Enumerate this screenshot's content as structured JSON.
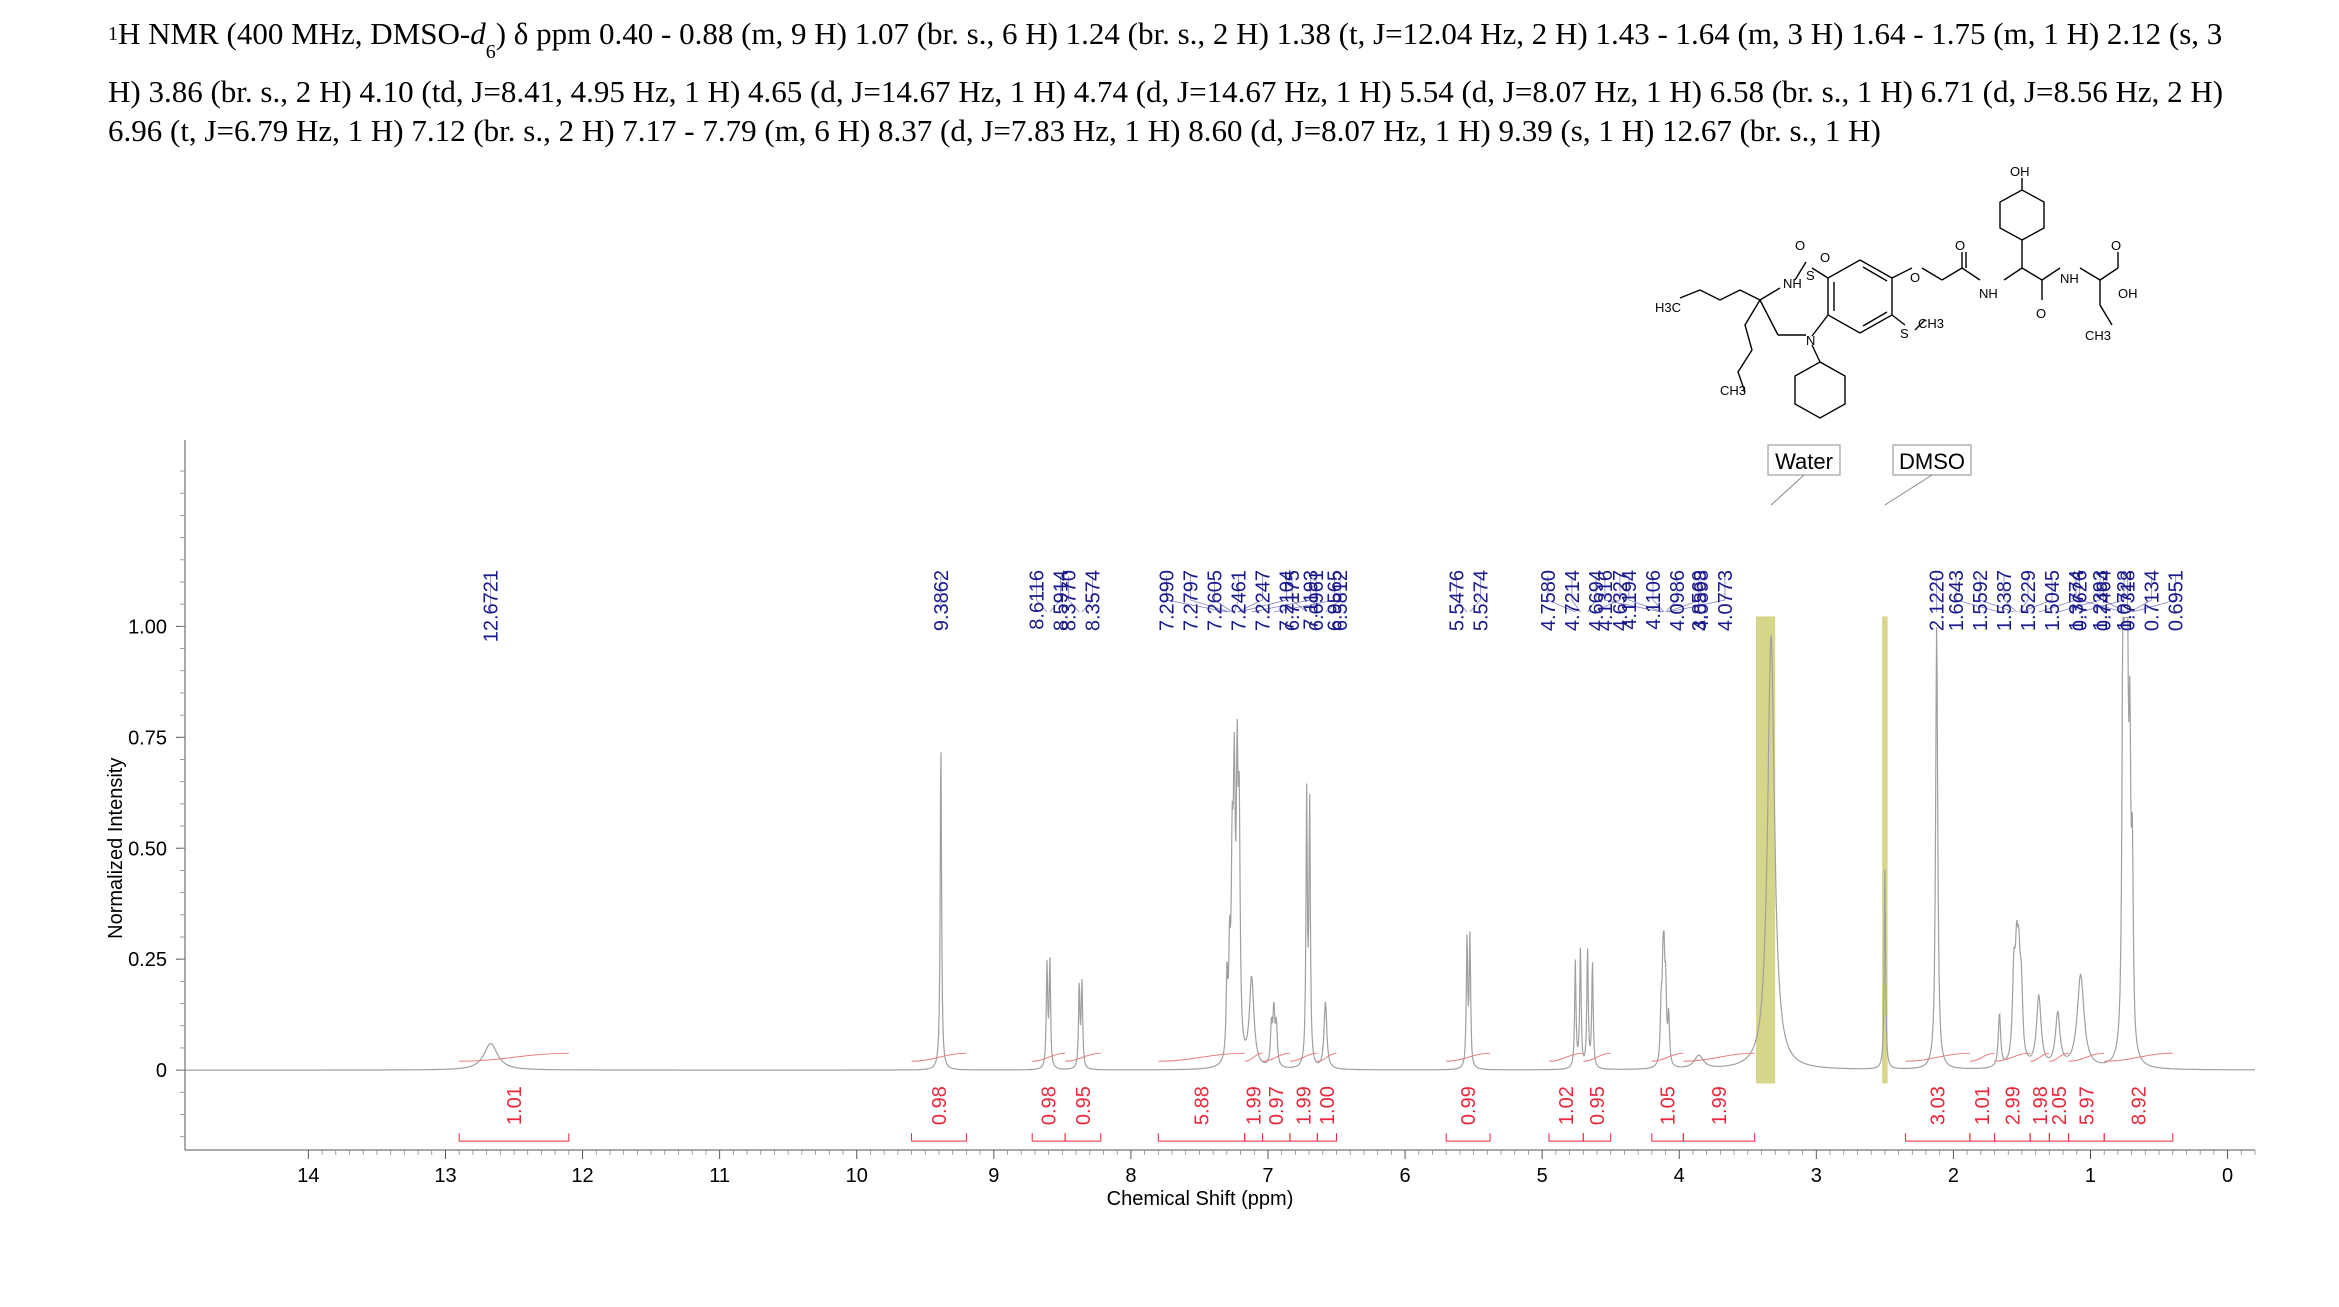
{
  "description": {
    "nucleus": "1",
    "prefix": "H NMR (400 MHz, DMSO-",
    "d_letter": "d",
    "d_sub": "6",
    "close_paren": ")",
    "body": " δ ppm 0.40 - 0.88 (m, 9 H) 1.07 (br. s., 6 H) 1.24 (br. s., 2 H) 1.38 (t,  J=12.04 Hz, 2 H) 1.43 - 1.64 (m, 3 H) 1.64 - 1.75 (m, 1 H) 2.12 (s, 3 H) 3.86 (br. s., 2 H) 4.10 (td,  J=8.41, 4.95 Hz, 1 H) 4.65 (d,  J=14.67 Hz, 1 H) 4.74 (d,  J=14.67 Hz, 1 H) 5.54 (d,  J=8.07 Hz, 1 H) 6.58 (br. s., 1 H) 6.71 (d,  J=8.56 Hz, 2 H) 6.96 (t,  J=6.79 Hz, 1 H) 7.12 (br. s., 2 H) 7.17 - 7.79 (m, 6 H) 8.37 (d,  J=7.83 Hz, 1 H) 8.60 (d,  J=8.07 Hz, 1 H) 9.39 (s, 1 H) 12.67 (br. s., 1 H)"
  },
  "structure": {
    "labels": [
      "OH",
      "O",
      "O",
      "NH",
      "S",
      "O",
      "O",
      "NH",
      "NH",
      "O",
      "OH",
      "H3C",
      "CH3",
      "S",
      "N",
      "O",
      "CH3",
      "CH3"
    ]
  },
  "colors": {
    "spectrum": "#a0a0a0",
    "peak_labels": "#1a1a8c",
    "integrals": "#e8283c",
    "integral_curve": "#e88080",
    "solvent_band": "#c8c864",
    "axis": "#555555"
  },
  "chart_data": {
    "type": "line",
    "xlabel": "Chemical Shift (ppm)",
    "ylabel": "Normalized Intensity",
    "xlim": [
      14.9,
      -0.2
    ],
    "ylim": [
      -0.18,
      1.42
    ],
    "x_reversed": true,
    "x_ticks": [
      14,
      13,
      12,
      11,
      10,
      9,
      8,
      7,
      6,
      5,
      4,
      3,
      2,
      1,
      0
    ],
    "y_ticks": [
      0,
      0.25,
      0.5,
      0.75,
      1.0
    ],
    "y_tick_labels": [
      "0",
      "0.25",
      "0.50",
      "0.75",
      "1.00"
    ],
    "peaks": [
      {
        "x": 12.67,
        "h": 0.06,
        "w": 0.06
      },
      {
        "x": 9.386,
        "h": 0.74,
        "w": 0.006
      },
      {
        "x": 8.612,
        "h": 0.23,
        "w": 0.006
      },
      {
        "x": 8.591,
        "h": 0.24,
        "w": 0.006
      },
      {
        "x": 8.377,
        "h": 0.19,
        "w": 0.006
      },
      {
        "x": 8.357,
        "h": 0.19,
        "w": 0.006
      },
      {
        "x": 7.299,
        "h": 0.18,
        "w": 0.007
      },
      {
        "x": 7.28,
        "h": 0.22,
        "w": 0.007
      },
      {
        "x": 7.261,
        "h": 0.4,
        "w": 0.008
      },
      {
        "x": 7.246,
        "h": 0.56,
        "w": 0.008
      },
      {
        "x": 7.225,
        "h": 0.58,
        "w": 0.008
      },
      {
        "x": 7.21,
        "h": 0.5,
        "w": 0.008
      },
      {
        "x": 7.119,
        "h": 0.2,
        "w": 0.02
      },
      {
        "x": 6.957,
        "h": 0.12,
        "w": 0.008
      },
      {
        "x": 6.975,
        "h": 0.09,
        "w": 0.008
      },
      {
        "x": 6.939,
        "h": 0.09,
        "w": 0.008
      },
      {
        "x": 6.718,
        "h": 0.61,
        "w": 0.006
      },
      {
        "x": 6.696,
        "h": 0.58,
        "w": 0.006
      },
      {
        "x": 6.581,
        "h": 0.15,
        "w": 0.012
      },
      {
        "x": 5.548,
        "h": 0.29,
        "w": 0.006
      },
      {
        "x": 5.527,
        "h": 0.29,
        "w": 0.006
      },
      {
        "x": 4.758,
        "h": 0.24,
        "w": 0.006
      },
      {
        "x": 4.721,
        "h": 0.27,
        "w": 0.006
      },
      {
        "x": 4.669,
        "h": 0.27,
        "w": 0.006
      },
      {
        "x": 4.633,
        "h": 0.24,
        "w": 0.006
      },
      {
        "x": 4.132,
        "h": 0.12,
        "w": 0.007
      },
      {
        "x": 4.119,
        "h": 0.17,
        "w": 0.007
      },
      {
        "x": 4.111,
        "h": 0.18,
        "w": 0.007
      },
      {
        "x": 4.099,
        "h": 0.16,
        "w": 0.007
      },
      {
        "x": 4.077,
        "h": 0.11,
        "w": 0.007
      },
      {
        "x": 3.857,
        "h": 0.03,
        "w": 0.04
      },
      {
        "x": 3.33,
        "h": 0.98,
        "w": 0.03
      },
      {
        "x": 2.5,
        "h": 0.45,
        "w": 0.006
      },
      {
        "x": 2.122,
        "h": 1.0,
        "w": 0.009
      },
      {
        "x": 1.664,
        "h": 0.12,
        "w": 0.01
      },
      {
        "x": 1.559,
        "h": 0.19,
        "w": 0.012
      },
      {
        "x": 1.539,
        "h": 0.2,
        "w": 0.012
      },
      {
        "x": 1.523,
        "h": 0.18,
        "w": 0.012
      },
      {
        "x": 1.505,
        "h": 0.15,
        "w": 0.012
      },
      {
        "x": 1.377,
        "h": 0.16,
        "w": 0.02
      },
      {
        "x": 1.239,
        "h": 0.12,
        "w": 0.02
      },
      {
        "x": 1.072,
        "h": 0.21,
        "w": 0.03
      },
      {
        "x": 0.763,
        "h": 0.88,
        "w": 0.008
      },
      {
        "x": 0.746,
        "h": 0.97,
        "w": 0.008
      },
      {
        "x": 0.732,
        "h": 0.95,
        "w": 0.008
      },
      {
        "x": 0.713,
        "h": 0.6,
        "w": 0.008
      },
      {
        "x": 0.695,
        "h": 0.4,
        "w": 0.008
      }
    ],
    "peak_labels": [
      {
        "label": "12.6721",
        "x": 12.6721
      },
      {
        "label": "9.3862",
        "x": 9.3862
      },
      {
        "label": "8.6116",
        "x": 8.6116
      },
      {
        "label": "8.5914",
        "x": 8.5914
      },
      {
        "label": "8.3770",
        "x": 8.377
      },
      {
        "label": "8.3574",
        "x": 8.3574
      },
      {
        "label": "7.2990",
        "x": 7.299
      },
      {
        "label": "7.2797",
        "x": 7.2797
      },
      {
        "label": "7.2605",
        "x": 7.2605
      },
      {
        "label": "7.2461",
        "x": 7.2461
      },
      {
        "label": "7.2247",
        "x": 7.2247
      },
      {
        "label": "7.2104",
        "x": 7.2104
      },
      {
        "label": "7.1193",
        "x": 7.1193
      },
      {
        "label": "6.9565",
        "x": 6.9565
      },
      {
        "label": "6.7175",
        "x": 6.7175
      },
      {
        "label": "6.6961",
        "x": 6.6961
      },
      {
        "label": "6.5812",
        "x": 6.5812
      },
      {
        "label": "5.5476",
        "x": 5.5476
      },
      {
        "label": "5.5274",
        "x": 5.5274
      },
      {
        "label": "4.7580",
        "x": 4.758
      },
      {
        "label": "4.7214",
        "x": 4.7214
      },
      {
        "label": "4.6694",
        "x": 4.6694
      },
      {
        "label": "4.6327",
        "x": 4.6327
      },
      {
        "label": "4.1316",
        "x": 4.1316
      },
      {
        "label": "4.1194",
        "x": 4.1194
      },
      {
        "label": "4.1106",
        "x": 4.1106
      },
      {
        "label": "4.0986",
        "x": 4.0986
      },
      {
        "label": "4.0898",
        "x": 4.0898
      },
      {
        "label": "4.0773",
        "x": 4.0773
      },
      {
        "label": "3.8569",
        "x": 3.8569
      },
      {
        "label": "2.1220",
        "x": 2.122
      },
      {
        "label": "1.6643",
        "x": 1.6643
      },
      {
        "label": "1.5592",
        "x": 1.5592
      },
      {
        "label": "1.5387",
        "x": 1.5387
      },
      {
        "label": "1.5229",
        "x": 1.5229
      },
      {
        "label": "1.5045",
        "x": 1.5045
      },
      {
        "label": "1.3774",
        "x": 1.3774
      },
      {
        "label": "1.2393",
        "x": 1.2393
      },
      {
        "label": "1.0722",
        "x": 1.0722
      },
      {
        "label": "0.7626",
        "x": 0.7626
      },
      {
        "label": "0.7464",
        "x": 0.7464
      },
      {
        "label": "0.7318",
        "x": 0.7318
      },
      {
        "label": "0.7134",
        "x": 0.7134
      },
      {
        "label": "0.6951",
        "x": 0.6951
      }
    ],
    "integrals": [
      {
        "value": "1.01",
        "from": 12.9,
        "to": 12.1
      },
      {
        "value": "0.98",
        "from": 9.6,
        "to": 9.2
      },
      {
        "value": "0.98",
        "from": 8.72,
        "to": 8.48
      },
      {
        "value": "0.95",
        "from": 8.48,
        "to": 8.22
      },
      {
        "value": "5.88",
        "from": 7.8,
        "to": 7.17
      },
      {
        "value": "1.99",
        "from": 7.17,
        "to": 7.04
      },
      {
        "value": "0.97",
        "from": 7.04,
        "to": 6.84
      },
      {
        "value": "1.99",
        "from": 6.84,
        "to": 6.64
      },
      {
        "value": "1.00",
        "from": 6.64,
        "to": 6.5
      },
      {
        "value": "0.99",
        "from": 5.7,
        "to": 5.38
      },
      {
        "value": "1.02",
        "from": 4.95,
        "to": 4.7
      },
      {
        "value": "0.95",
        "from": 4.7,
        "to": 4.5
      },
      {
        "value": "1.05",
        "from": 4.2,
        "to": 3.97
      },
      {
        "value": "1.99",
        "from": 3.97,
        "to": 3.45
      },
      {
        "value": "3.03",
        "from": 2.35,
        "to": 1.88
      },
      {
        "value": "1.01",
        "from": 1.88,
        "to": 1.7
      },
      {
        "value": "2.99",
        "from": 1.7,
        "to": 1.44
      },
      {
        "value": "1.98",
        "from": 1.44,
        "to": 1.3
      },
      {
        "value": "2.05",
        "from": 1.3,
        "to": 1.16
      },
      {
        "value": "5.97",
        "from": 1.16,
        "to": 0.9
      },
      {
        "value": "8.92",
        "from": 0.9,
        "to": 0.4
      }
    ],
    "solvent_labels": [
      {
        "label": "Water",
        "x": 3.33
      },
      {
        "label": "DMSO",
        "x": 2.5
      }
    ],
    "solvent_bands": [
      {
        "from": 3.44,
        "to": 3.3
      },
      {
        "from": 2.52,
        "to": 2.48
      }
    ]
  }
}
